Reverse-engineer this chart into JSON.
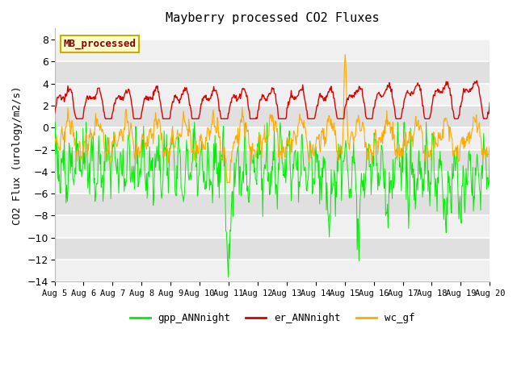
{
  "title": "Mayberry processed CO2 Fluxes",
  "ylabel": "CO2 Flux (urology/m2/s)",
  "ylim": [
    -14,
    9
  ],
  "yticks": [
    -14,
    -12,
    -10,
    -8,
    -6,
    -4,
    -2,
    0,
    2,
    4,
    6,
    8
  ],
  "n_points": 720,
  "fig_bg": "#ffffff",
  "plot_bg_light": "#f5f5f5",
  "plot_bg_dark": "#e8e8e8",
  "line_colors": {
    "gpp": "#00ee00",
    "er": "#dd0000",
    "wc": "#ffaa00"
  },
  "legend_labels": [
    "gpp_ANNnight",
    "er_ANNnight",
    "wc_gf"
  ],
  "annotation_text": "MB_processed",
  "annotation_color": "#880000",
  "annotation_bg": "#ffffcc",
  "annotation_border": "#ccaa00",
  "xticklabels": [
    "Aug 5",
    "Aug 6",
    "Aug 7",
    "Aug 8",
    "Aug 9",
    "Aug 10",
    "Aug 11",
    "Aug 12",
    "Aug 13",
    "Aug 14",
    "Aug 15",
    "Aug 16",
    "Aug 17",
    "Aug 18",
    "Aug 19",
    "Aug 20"
  ],
  "grid_color": "#cccccc",
  "band_colors": [
    "#f0f0f0",
    "#e0e0e0"
  ]
}
